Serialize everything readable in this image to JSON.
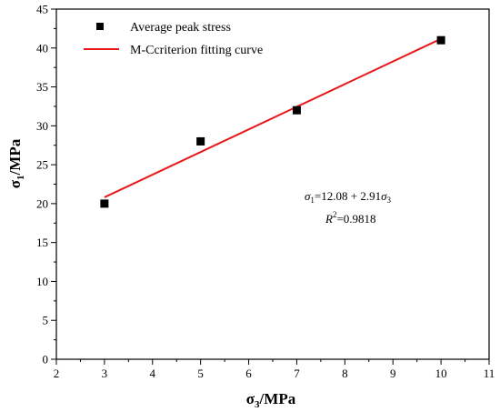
{
  "chart_data": {
    "type": "scatter",
    "xlabel": {
      "symbol": "σ",
      "sub": "3",
      "unit": "/MPa"
    },
    "ylabel": {
      "symbol": "σ",
      "sub": "1",
      "unit": "/MPa"
    },
    "xlim": [
      2,
      11
    ],
    "ylim": [
      0,
      45
    ],
    "x_ticks": [
      2,
      3,
      4,
      5,
      6,
      7,
      8,
      9,
      10,
      11
    ],
    "y_ticks": [
      0,
      5,
      10,
      15,
      20,
      25,
      30,
      35,
      40,
      45
    ],
    "grid": false,
    "legend_position": "top-left",
    "series": [
      {
        "name": "Average peak stress",
        "kind": "scatter",
        "marker": "square",
        "color": "#000000",
        "points": [
          {
            "x": 3,
            "y": 20
          },
          {
            "x": 5,
            "y": 28
          },
          {
            "x": 7,
            "y": 32
          },
          {
            "x": 10,
            "y": 41
          }
        ]
      },
      {
        "name": "M-Ccriterion fitting curve",
        "kind": "line",
        "color": "#e8191b",
        "intercept": 12.08,
        "slope": 2.91,
        "x_range": [
          3,
          10
        ]
      }
    ],
    "annotation": {
      "equation": {
        "lhs_symbol": "σ",
        "lhs_sub": "1",
        "rhs_const": "=12.08 + 2.91",
        "rhs_symbol": "σ",
        "rhs_sub": "3"
      },
      "r2": {
        "symbol": "R",
        "sup": "2",
        "value": "=0.9818"
      }
    }
  }
}
